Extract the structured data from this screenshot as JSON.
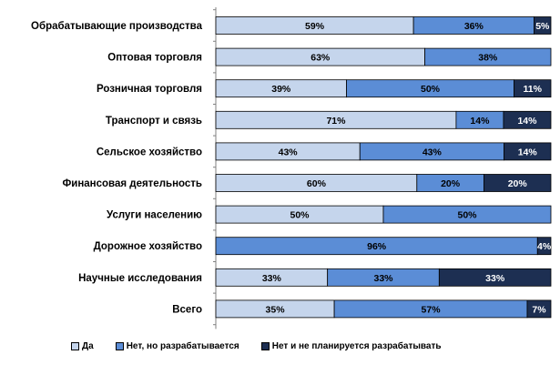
{
  "chart_data": {
    "type": "bar",
    "orientation": "horizontal",
    "stacked": "percent",
    "categories": [
      "Обрабатывающие производства",
      "Оптовая торговля",
      "Розничная торговля",
      "Транспорт и связь",
      "Сельское хозяйство",
      "Финансовая деятельность",
      "Услуги населению",
      "Дорожное хозяйство",
      "Научные исследования",
      "Всего"
    ],
    "series": [
      {
        "name": "Да",
        "color": "#c5d5ec",
        "values": [
          59,
          63,
          39,
          71,
          43,
          60,
          50,
          0,
          33,
          35
        ]
      },
      {
        "name": "Нет, но разрабатывается",
        "color": "#5b8dd6",
        "values": [
          36,
          38,
          50,
          14,
          43,
          20,
          50,
          96,
          33,
          57
        ]
      },
      {
        "name": "Нет и не планируется разрабатывать",
        "color": "#1d2f52",
        "values": [
          5,
          0,
          11,
          14,
          14,
          20,
          0,
          4,
          33,
          7
        ]
      }
    ],
    "value_labels": [
      [
        "59%",
        "36%",
        "5%"
      ],
      [
        "63%",
        "38%",
        ""
      ],
      [
        "39%",
        "50%",
        "11%"
      ],
      [
        "71%",
        "14%",
        "14%"
      ],
      [
        "43%",
        "43%",
        "14%"
      ],
      [
        "60%",
        "20%",
        "20%"
      ],
      [
        "50%",
        "50%",
        ""
      ],
      [
        "",
        "96%",
        "4%"
      ],
      [
        "33%",
        "33%",
        "33%"
      ],
      [
        "35%",
        "57%",
        "7%"
      ]
    ],
    "legend_position": "bottom",
    "grid": false
  }
}
